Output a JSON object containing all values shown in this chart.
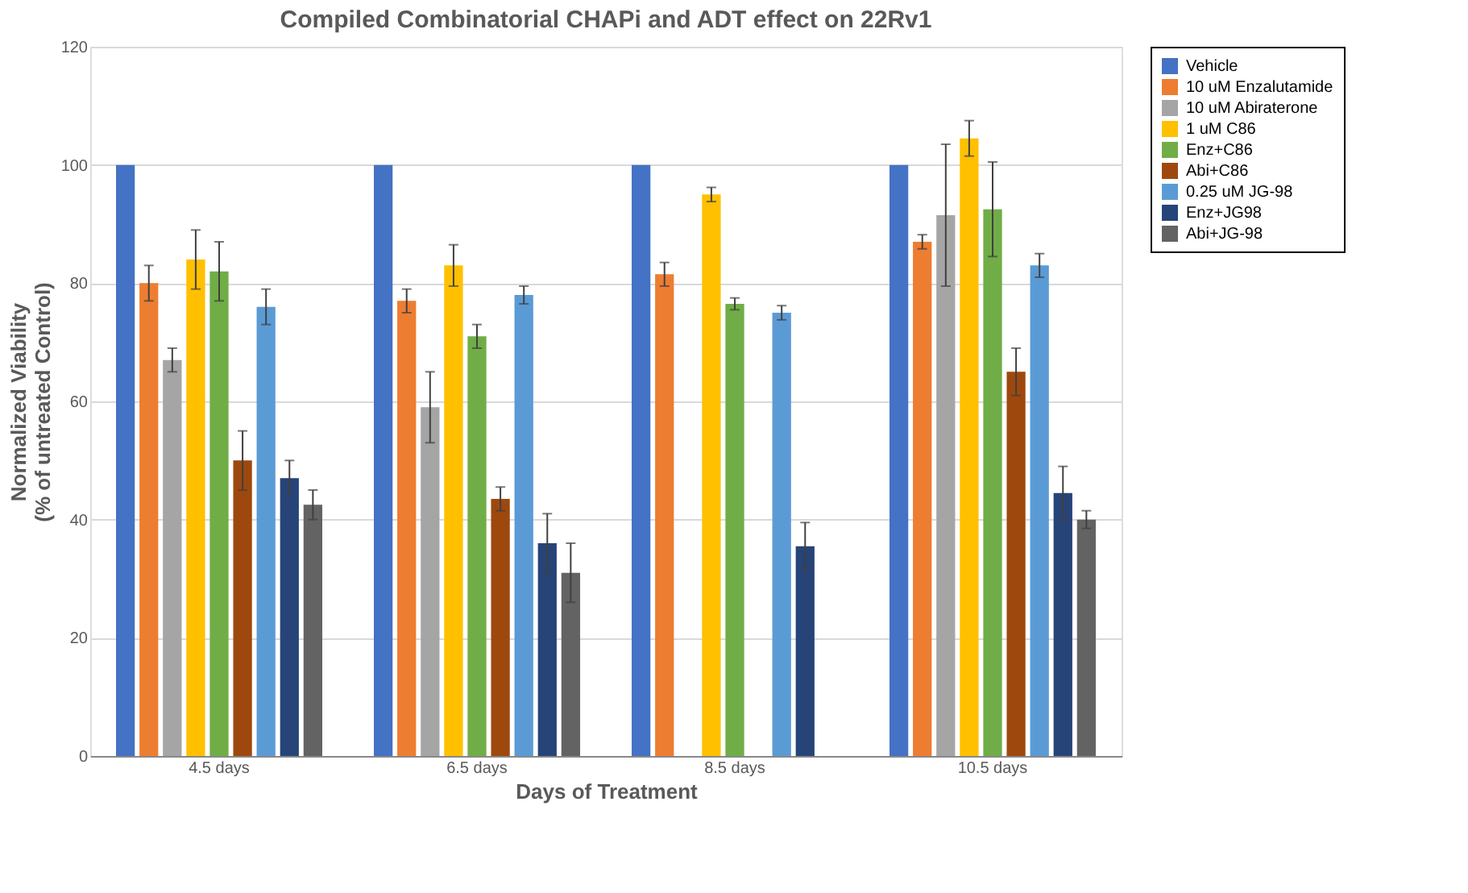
{
  "chart_data": {
    "type": "bar",
    "title": "Compiled Combinatorial CHAPi and ADT effect on 22Rv1",
    "xlabel": "Days of Treatment",
    "ylabel": "Normalized Viability\n(% of untreated Control)",
    "categories": [
      "4.5 days",
      "6.5 days",
      "8.5 days",
      "10.5 days"
    ],
    "series": [
      {
        "name": "Vehicle",
        "color": "#4472c4",
        "values": [
          100,
          100,
          100,
          100
        ]
      },
      {
        "name": "10 uM Enzalutamide",
        "color": "#ed7d31",
        "values": [
          80,
          77,
          81.5,
          87
        ],
        "errors": [
          3,
          2,
          2,
          1.2
        ]
      },
      {
        "name": "10 uM Abiraterone",
        "color": "#a5a5a5",
        "values": [
          67,
          59,
          null,
          91.5
        ],
        "errors": [
          2,
          6,
          null,
          12
        ]
      },
      {
        "name": "1 uM  C86",
        "color": "#ffc000",
        "values": [
          84,
          83,
          95,
          104.5
        ],
        "errors": [
          5,
          3.5,
          1.2,
          3
        ]
      },
      {
        "name": "Enz+C86",
        "color": "#70ad47",
        "values": [
          82,
          71,
          76.5,
          92.5
        ],
        "errors": [
          5,
          2,
          1,
          8
        ]
      },
      {
        "name": "Abi+C86",
        "color": "#9e480e",
        "values": [
          50,
          43.5,
          null,
          65
        ],
        "errors": [
          5,
          2,
          null,
          4
        ]
      },
      {
        "name": "0.25 uM JG-98",
        "color": "#5b9bd5",
        "values": [
          76,
          78,
          75,
          83
        ],
        "errors": [
          3,
          1.5,
          1.2,
          2
        ]
      },
      {
        "name": "Enz+JG98",
        "color": "#264478",
        "values": [
          47,
          36,
          35.5,
          44.5
        ],
        "errors": [
          3,
          5,
          4,
          4.5
        ]
      },
      {
        "name": "Abi+JG-98",
        "color": "#636363",
        "values": [
          42.5,
          31,
          null,
          40
        ],
        "errors": [
          2.5,
          5,
          null,
          1.5
        ]
      }
    ],
    "ylim": [
      0,
      120
    ],
    "yticks": [
      0,
      20,
      40,
      60,
      80,
      100,
      120
    ],
    "grid": "y",
    "legend": "right"
  }
}
